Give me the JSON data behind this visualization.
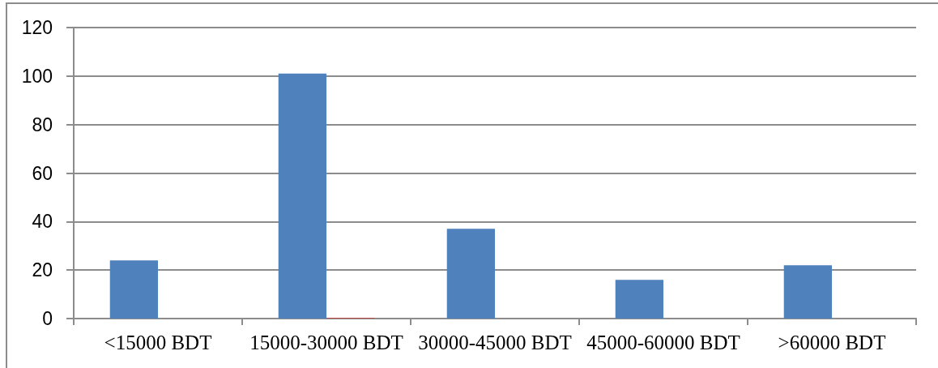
{
  "chart_data": {
    "type": "bar",
    "categories": [
      "<15000 BDT",
      "15000-30000 BDT",
      "30000-45000 BDT",
      "45000-60000 BDT",
      ">60000 BDT"
    ],
    "series": [
      {
        "color": "#4f81bd",
        "values": [
          24,
          101,
          37,
          16,
          22
        ]
      },
      {
        "color": "#c0504d",
        "values": [
          0,
          0.3,
          0,
          0,
          0
        ]
      }
    ],
    "ylim": [
      0,
      120
    ],
    "yticks": [
      0,
      20,
      40,
      60,
      80,
      100,
      120
    ],
    "grid": "y"
  }
}
